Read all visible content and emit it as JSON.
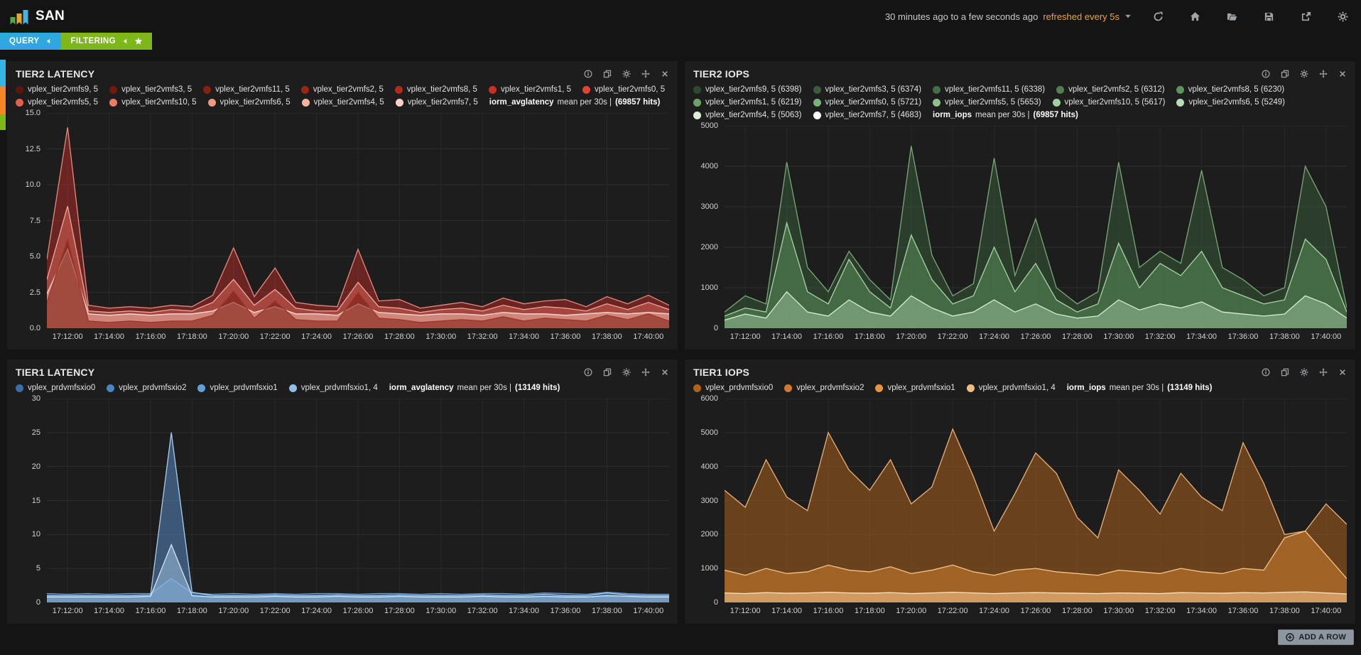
{
  "app": {
    "title": "SAN"
  },
  "header": {
    "time_range": "30 minutes ago to a few seconds ago",
    "refresh_text": "refreshed every 5s",
    "icons": [
      "refresh",
      "home",
      "open-folder",
      "save",
      "share",
      "settings"
    ]
  },
  "tabs": [
    {
      "label": "QUERY",
      "color": "#2fa8de"
    },
    {
      "label": "FILTERING",
      "color": "#7db71a"
    }
  ],
  "row_handles": [
    {
      "color": "#33b5e5"
    },
    {
      "color": "#f6861f"
    },
    {
      "color": "#7db71a"
    }
  ],
  "add_row": {
    "label": "ADD A ROW"
  },
  "panel_icons": [
    "info",
    "duplicate",
    "settings",
    "move",
    "close"
  ],
  "panels": [
    {
      "title": "TIER2 LATENCY",
      "legend": {
        "items": [
          {
            "label": "vplex_tier2vmfs9, 5",
            "color": "#5e150d"
          },
          {
            "label": "vplex_tier2vmfs3, 5",
            "color": "#731a10"
          },
          {
            "label": "vplex_tier2vmfs11, 5",
            "color": "#882013"
          },
          {
            "label": "vplex_tier2vmfs2, 5",
            "color": "#9d2516"
          },
          {
            "label": "vplex_tier2vmfs8, 5",
            "color": "#b22a19"
          },
          {
            "label": "vplex_tier2vmfs1, 5",
            "color": "#c93023"
          },
          {
            "label": "vplex_tier2vmfs0, 5",
            "color": "#e04434"
          },
          {
            "label": "vplex_tier2vmfs5, 5",
            "color": "#e4604e"
          },
          {
            "label": "vplex_tier2vmfs10, 5",
            "color": "#ea7c68"
          },
          {
            "label": "vplex_tier2vmfs6, 5",
            "color": "#f09882"
          },
          {
            "label": "vplex_tier2vmfs4, 5",
            "color": "#f6b49c"
          },
          {
            "label": "vplex_tier2vmfs7, 5",
            "color": "#fcd3c4"
          }
        ],
        "stat_bold": "iorm_avglatency",
        "stat_mid": "mean per 30s |",
        "stat_hits": "(69857 hits)"
      },
      "chart_data": {
        "type": "area",
        "title": "TIER2 LATENCY",
        "ylim": [
          0,
          15
        ],
        "yticks": [
          "15.0",
          "12.5",
          "10.0",
          "7.5",
          "5.0",
          "2.5",
          "0.0"
        ],
        "x_minutes_domain": [
          0,
          30
        ],
        "xtick_minutes": [
          1,
          3,
          5,
          7,
          9,
          11,
          13,
          15,
          17,
          19,
          21,
          23,
          25,
          27,
          29
        ],
        "xtick_labels": [
          "17:12:00",
          "17:14:00",
          "17:16:00",
          "17:18:00",
          "17:20:00",
          "17:22:00",
          "17:24:00",
          "17:26:00",
          "17:28:00",
          "17:30:00",
          "17:32:00",
          "17:34:00",
          "17:36:00",
          "17:38:00",
          "17:40:00"
        ],
        "grid": true,
        "series": [
          {
            "name": "vplex_tier2vmfs0, 5",
            "color": "#c9302c",
            "stroke": "#e8897f",
            "fill_opacity": 0.45,
            "values": [
              4.8,
              14,
              1.6,
              1.4,
              1.5,
              1.4,
              1.6,
              1.5,
              2.3,
              5.6,
              2.2,
              4.2,
              1.8,
              1.6,
              1.5,
              5.5,
              1.9,
              2.0,
              1.4,
              1.6,
              1.8,
              1.5,
              2.1,
              1.7,
              1.9,
              2.0,
              1.5,
              2.2,
              1.7,
              2.3,
              1.6
            ]
          },
          {
            "name": "vplex_tier2vmfs5, 5",
            "color": "#e0695a",
            "stroke": "#f2a79b",
            "fill_opacity": 0.5,
            "values": [
              3.4,
              8.5,
              1.2,
              1.1,
              1.2,
              1.1,
              1.3,
              1.2,
              1.8,
              3.4,
              1.6,
              2.7,
              1.4,
              1.2,
              1.2,
              3.2,
              1.5,
              1.4,
              1.1,
              1.3,
              1.4,
              1.2,
              1.6,
              1.3,
              1.5,
              1.4,
              1.2,
              1.7,
              1.3,
              1.8,
              1.3
            ]
          },
          {
            "name": "vplex_tier2vmfs7, 5",
            "color": "#f4b9ab",
            "stroke": "#fbdcd2",
            "fill_opacity": 0.55,
            "values": [
              2.4,
              5.5,
              1.0,
              0.9,
              1.0,
              0.9,
              1.0,
              1.0,
              1.2,
              1.8,
              1.1,
              1.5,
              1.0,
              1.0,
              0.9,
              1.7,
              1.1,
              1.0,
              0.9,
              1.0,
              1.0,
              0.9,
              1.1,
              1.0,
              1.0,
              0.9,
              1.0,
              1.1,
              1.0,
              1.1,
              1.0
            ]
          },
          {
            "name": "vplex_tier2vmfs9, 5",
            "color": "#7a1a10",
            "stroke": "#a23327",
            "fill_opacity": 0.55,
            "values": [
              1.8,
              6.2,
              0.5,
              0.4,
              0.5,
              0.4,
              0.5,
              0.5,
              0.9,
              2.6,
              0.7,
              1.9,
              0.6,
              0.5,
              0.5,
              2.5,
              0.7,
              0.6,
              0.4,
              0.5,
              0.6,
              0.5,
              0.8,
              0.5,
              0.7,
              0.6,
              0.5,
              0.9,
              0.6,
              1.0,
              0.5
            ]
          }
        ]
      }
    },
    {
      "title": "TIER2 IOPS",
      "legend": {
        "items": [
          {
            "label": "vplex_tier2vmfs9, 5 (6398)",
            "color": "#2e4a2e"
          },
          {
            "label": "vplex_tier2vmfs3, 5 (6374)",
            "color": "#3a5c3a"
          },
          {
            "label": "vplex_tier2vmfs11, 5 (6338)",
            "color": "#466e46"
          },
          {
            "label": "vplex_tier2vmfs2, 5 (6312)",
            "color": "#528052"
          },
          {
            "label": "vplex_tier2vmfs8, 5 (6230)",
            "color": "#5e925e"
          },
          {
            "label": "vplex_tier2vmfs1, 5 (6219)",
            "color": "#6ba46b"
          },
          {
            "label": "vplex_tier2vmfs0, 5 (5721)",
            "color": "#7ab37a"
          },
          {
            "label": "vplex_tier2vmfs5, 5 (5653)",
            "color": "#8ec18e"
          },
          {
            "label": "vplex_tier2vmfs10, 5 (5617)",
            "color": "#a2cfa2"
          },
          {
            "label": "vplex_tier2vmfs6, 5 (5249)",
            "color": "#b7dcb7"
          },
          {
            "label": "vplex_tier2vmfs4, 5 (5063)",
            "color": "#dbeedb"
          },
          {
            "label": "vplex_tier2vmfs7, 5 (4683)",
            "color": "#ffffff"
          }
        ],
        "stat_bold": "iorm_iops",
        "stat_mid": "mean per 30s |",
        "stat_hits": "(69857 hits)"
      },
      "chart_data": {
        "type": "area",
        "title": "TIER2 IOPS",
        "ylim": [
          0,
          5000
        ],
        "yticks": [
          "5000",
          "4000",
          "3000",
          "2000",
          "1000",
          "0"
        ],
        "x_minutes_domain": [
          0,
          30
        ],
        "xtick_minutes": [
          1,
          3,
          5,
          7,
          9,
          11,
          13,
          15,
          17,
          19,
          21,
          23,
          25,
          27,
          29
        ],
        "xtick_labels": [
          "17:12:00",
          "17:14:00",
          "17:16:00",
          "17:18:00",
          "17:20:00",
          "17:22:00",
          "17:24:00",
          "17:26:00",
          "17:28:00",
          "17:30:00",
          "17:32:00",
          "17:34:00",
          "17:36:00",
          "17:38:00",
          "17:40:00"
        ],
        "grid": true,
        "series": [
          {
            "name": "vplex_tier2vmfs1, 5",
            "color": "#396039",
            "stroke": "#79a879",
            "fill_opacity": 0.5,
            "values": [
              400,
              800,
              600,
              4100,
              1500,
              900,
              1900,
              1200,
              700,
              4500,
              1800,
              800,
              1100,
              4200,
              1300,
              2700,
              1000,
              600,
              900,
              4100,
              1500,
              1900,
              1600,
              3900,
              1500,
              1200,
              800,
              1000,
              4000,
              3000,
              500
            ]
          },
          {
            "name": "vplex_tier2vmfs0, 5",
            "color": "#5d955d",
            "stroke": "#a8d3a8",
            "fill_opacity": 0.5,
            "values": [
              300,
              500,
              400,
              2600,
              900,
              600,
              1700,
              900,
              500,
              2300,
              1200,
              600,
              800,
              2000,
              900,
              1600,
              700,
              400,
              600,
              2100,
              1000,
              1600,
              1300,
              1900,
              1000,
              800,
              600,
              700,
              2200,
              1700,
              400
            ]
          },
          {
            "name": "vplex_tier2vmfs4, 5",
            "color": "#a9cfa9",
            "stroke": "#d8ecd8",
            "fill_opacity": 0.45,
            "values": [
              200,
              350,
              250,
              900,
              400,
              300,
              700,
              400,
              300,
              800,
              500,
              300,
              400,
              700,
              400,
              600,
              350,
              250,
              300,
              700,
              450,
              600,
              500,
              650,
              400,
              350,
              300,
              350,
              800,
              600,
              250
            ]
          }
        ]
      }
    },
    {
      "title": "TIER1 LATENCY",
      "legend": {
        "items": [
          {
            "label": "vplex_prdvmfsxio0",
            "color": "#3a6ea8"
          },
          {
            "label": "vplex_prdvmfsxio2",
            "color": "#4a84c4"
          },
          {
            "label": "vplex_prdvmfsxio1",
            "color": "#63a0da"
          },
          {
            "label": "vplex_prdvmfsxio1, 4",
            "color": "#8fc0ea"
          }
        ],
        "stat_bold": "iorm_avglatency",
        "stat_mid": "mean per 30s |",
        "stat_hits": "(13149 hits)"
      },
      "chart_data": {
        "type": "area",
        "title": "TIER1 LATENCY",
        "ylim": [
          0,
          30
        ],
        "yticks": [
          "30",
          "25",
          "20",
          "15",
          "10",
          "5",
          "0"
        ],
        "x_minutes_domain": [
          0,
          30
        ],
        "xtick_minutes": [
          1,
          3,
          5,
          7,
          9,
          11,
          13,
          15,
          17,
          19,
          21,
          23,
          25,
          27,
          29
        ],
        "xtick_labels": [
          "17:12:00",
          "17:14:00",
          "17:16:00",
          "17:18:00",
          "17:20:00",
          "17:22:00",
          "17:24:00",
          "17:26:00",
          "17:28:00",
          "17:30:00",
          "17:32:00",
          "17:34:00",
          "17:36:00",
          "17:38:00",
          "17:40:00"
        ],
        "grid": true,
        "series": [
          {
            "name": "vplex_prdvmfsxio0",
            "color": "#31598c",
            "stroke": "#6d9ecf",
            "fill_opacity": 0.6,
            "values": [
              1.3,
              1.2,
              1.3,
              1.2,
              1.3,
              1.3,
              3.5,
              1.4,
              1.2,
              1.3,
              1.2,
              1.3,
              1.2,
              1.3,
              1.3,
              1.2,
              1.3,
              1.3,
              1.2,
              1.3,
              1.2,
              1.3,
              1.3,
              1.2,
              1.4,
              1.3,
              1.2,
              1.5,
              1.3,
              1.2,
              1.2
            ]
          },
          {
            "name": "vplex_prdvmfsxio1",
            "color": "#5b93cf",
            "stroke": "#a9cdef",
            "fill_opacity": 0.5,
            "values": [
              1.0,
              1.0,
              1.0,
              1.0,
              1.0,
              1.1,
              25,
              1.5,
              1.0,
              1.0,
              1.0,
              1.1,
              1.0,
              1.0,
              1.1,
              1.0,
              1.0,
              1.1,
              1.0,
              1.0,
              1.0,
              1.1,
              1.0,
              1.0,
              1.2,
              1.0,
              1.0,
              1.4,
              1.1,
              1.0,
              1.0
            ]
          },
          {
            "name": "vplex_prdvmfsxio1, 4",
            "color": "#a7c9ea",
            "stroke": "#d3e6f7",
            "fill_opacity": 0.5,
            "values": [
              0.8,
              0.8,
              0.8,
              0.8,
              0.8,
              0.9,
              8.5,
              1.0,
              0.8,
              0.8,
              0.8,
              0.9,
              0.8,
              0.8,
              0.9,
              0.8,
              0.8,
              0.9,
              0.8,
              0.8,
              0.8,
              0.9,
              0.8,
              0.8,
              0.9,
              0.8,
              0.8,
              1.0,
              0.9,
              0.8,
              0.8
            ]
          }
        ]
      }
    },
    {
      "title": "TIER1 IOPS",
      "legend": {
        "items": [
          {
            "label": "vplex_prdvmfsxio0",
            "color": "#b06218"
          },
          {
            "label": "vplex_prdvmfsxio2",
            "color": "#d1792a"
          },
          {
            "label": "vplex_prdvmfsxio1",
            "color": "#e8953f"
          },
          {
            "label": "vplex_prdvmfsxio1, 4",
            "color": "#f3bd80"
          }
        ],
        "stat_bold": "iorm_iops",
        "stat_mid": "mean per 30s |",
        "stat_hits": "(13149 hits)"
      },
      "chart_data": {
        "type": "area",
        "title": "TIER1 IOPS",
        "ylim": [
          0,
          6000
        ],
        "yticks": [
          "6000",
          "5000",
          "4000",
          "3000",
          "2000",
          "1000",
          "0"
        ],
        "x_minutes_domain": [
          0,
          30
        ],
        "xtick_minutes": [
          1,
          3,
          5,
          7,
          9,
          11,
          13,
          15,
          17,
          19,
          21,
          23,
          25,
          27,
          29
        ],
        "xtick_labels": [
          "17:12:00",
          "17:14:00",
          "17:16:00",
          "17:18:00",
          "17:20:00",
          "17:22:00",
          "17:24:00",
          "17:26:00",
          "17:28:00",
          "17:30:00",
          "17:32:00",
          "17:34:00",
          "17:36:00",
          "17:38:00",
          "17:40:00"
        ],
        "grid": true,
        "series": [
          {
            "name": "vplex_prdvmfsxio0",
            "color": "#9c5a1d",
            "stroke": "#e9b277",
            "fill_opacity": 0.6,
            "values": [
              3300,
              2800,
              4200,
              3100,
              2700,
              5000,
              3900,
              3300,
              4200,
              2900,
              3400,
              5100,
              3700,
              2100,
              3200,
              4400,
              3800,
              2500,
              1900,
              3900,
              3300,
              2600,
              3800,
              3100,
              2700,
              4700,
              3500,
              2000,
              2100,
              2900,
              2300
            ]
          },
          {
            "name": "vplex_prdvmfsxio1",
            "color": "#cd7e2e",
            "stroke": "#f3c48c",
            "fill_opacity": 0.55,
            "values": [
              950,
              800,
              1000,
              850,
              900,
              1100,
              950,
              900,
              1050,
              850,
              950,
              1100,
              900,
              800,
              950,
              1000,
              900,
              850,
              800,
              950,
              900,
              850,
              1000,
              900,
              850,
              1000,
              950,
              1900,
              2100,
              1400,
              700
            ]
          },
          {
            "name": "vplex_prdvmfsxio1, 4",
            "color": "#f0c089",
            "stroke": "#fbe3c4",
            "fill_opacity": 0.6,
            "values": [
              280,
              260,
              290,
              270,
              280,
              300,
              280,
              270,
              290,
              260,
              280,
              300,
              280,
              260,
              280,
              290,
              280,
              270,
              260,
              280,
              270,
              260,
              290,
              280,
              270,
              290,
              280,
              300,
              310,
              280,
              250
            ]
          }
        ]
      }
    }
  ]
}
